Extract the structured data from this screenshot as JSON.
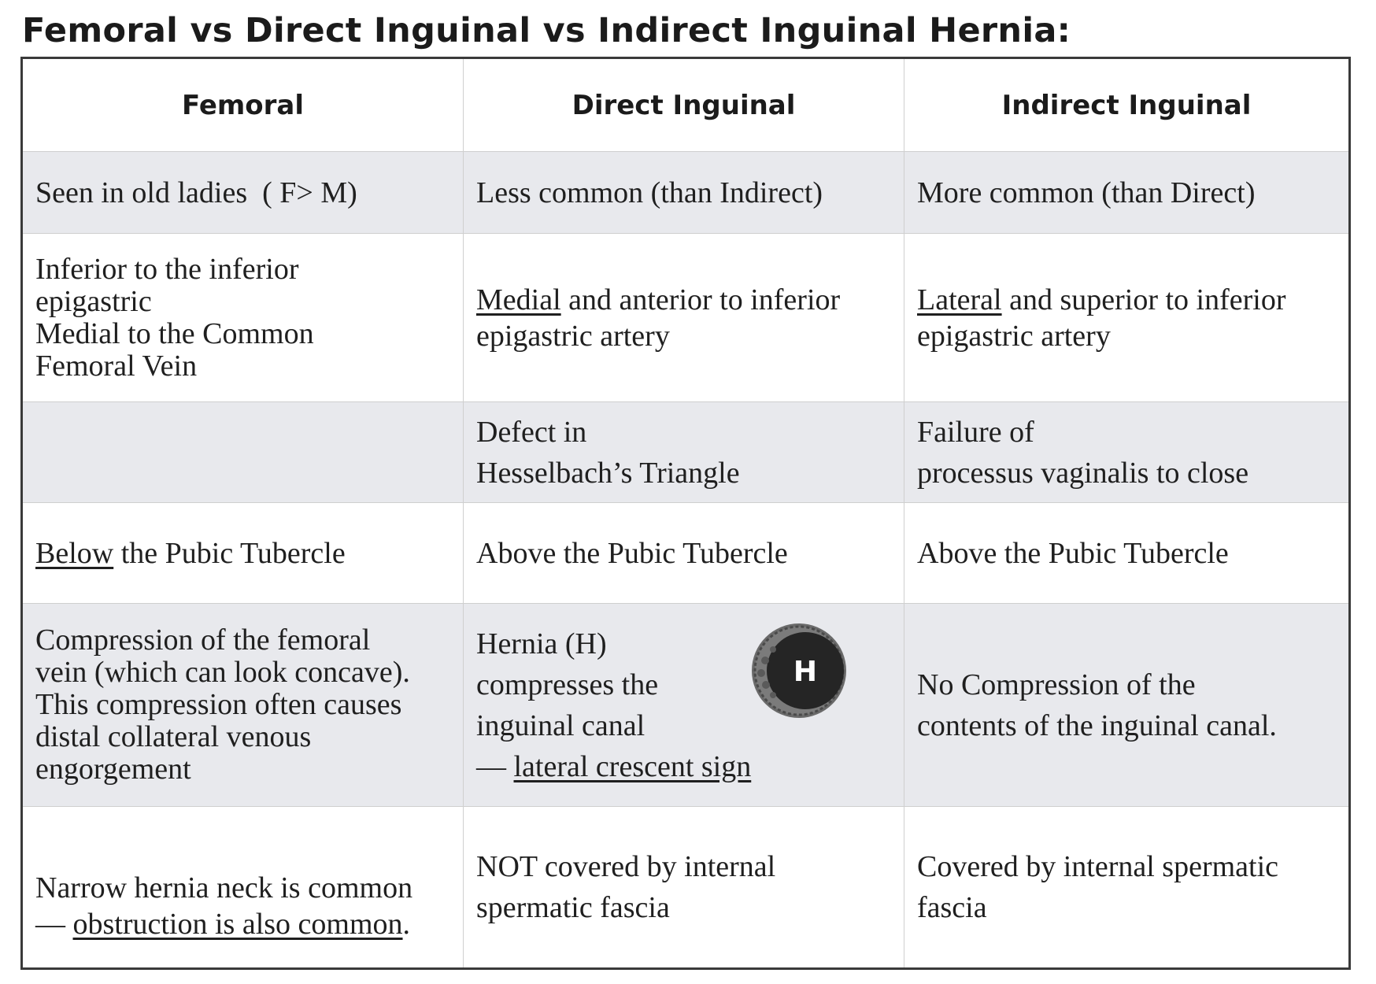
{
  "title": "Femoral vs Direct Inguinal vs Indirect Inguinal Hernia:",
  "headers": [
    "Femoral",
    "Direct Inguinal",
    "Indirect Inguinal"
  ],
  "rows": {
    "frequency": {
      "femoral": "Seen in old ladies  ( F> M)",
      "direct": "Less common (than Indirect)",
      "indirect": "More common (than Direct)"
    },
    "location_vessel": {
      "femoral": [
        "Inferior to the inferior",
        "epigastric",
        "Medial to the Common",
        "Femoral Vein"
      ],
      "direct_u": "Medial",
      "direct_rest": " and anterior to inferior epigastric artery",
      "indirect_u": "Lateral",
      "indirect_rest": " and superior to inferior epigastric artery"
    },
    "cause": {
      "femoral": "",
      "direct": [
        "Defect in",
        "Hesselbach’s Triangle"
      ],
      "indirect": [
        "Failure of",
        "processus vaginalis to close"
      ]
    },
    "pubic_tubercle": {
      "femoral_u": "Below",
      "femoral_rest": " the Pubic Tubercle",
      "direct": "Above the Pubic Tubercle",
      "indirect": "Above the Pubic Tubercle"
    },
    "compression": {
      "femoral": [
        "Compression of the femoral",
        "vein (which can look concave).",
        "This compression often causes",
        "distal collateral venous",
        "engorgement"
      ],
      "direct": [
        "Hernia (H)",
        "compresses the",
        "inguinal canal"
      ],
      "direct_dash": "— ",
      "direct_sign": "lateral crescent sign",
      "direct_icon_label": "H",
      "direct_icon_name": "hernia-crescent-icon",
      "indirect": [
        "No Compression of the",
        "contents of the inguinal canal."
      ]
    },
    "fascia": {
      "femoral_line1": "Narrow hernia neck is common",
      "femoral_dash": "— ",
      "femoral_u": "obstruction is also common",
      "femoral_end": ".",
      "direct": [
        "NOT covered by internal",
        "spermatic fascia"
      ],
      "indirect": [
        "Covered by internal spermatic",
        "fascia"
      ]
    }
  },
  "colors": {
    "shade": "#e8e9ed",
    "border": "#3a3a3a",
    "text": "#1f1f1f"
  }
}
